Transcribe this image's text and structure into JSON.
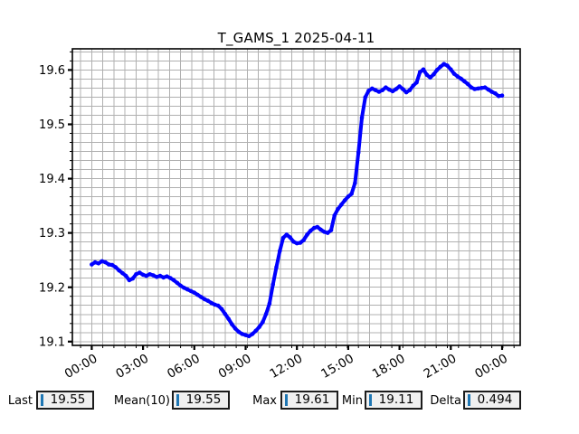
{
  "title": "T_GAMS_1 2025-04-11",
  "stats": [
    {
      "label": "Last",
      "value": "19.55"
    },
    {
      "label": "Mean(10)",
      "value": "19.55"
    },
    {
      "label": "Max",
      "value": "19.61"
    },
    {
      "label": "Min",
      "value": "19.11"
    },
    {
      "label": "Delta",
      "value": "0.494"
    }
  ],
  "colors": {
    "line": "#0000ff",
    "grid": "#b0b0b0",
    "frame": "#000000",
    "tick_label": "#000000",
    "stat_cursor": "#1f77b4",
    "stat_box_bg": "#f0f0f0"
  },
  "chart_data": {
    "type": "line",
    "title": "T_GAMS_1 2025-04-11",
    "xlabel": "",
    "ylabel": "",
    "x_tick_labels": [
      "00:00",
      "03:00",
      "06:00",
      "09:00",
      "12:00",
      "15:00",
      "18:00",
      "21:00",
      "00:00"
    ],
    "x_tick_hours": [
      0,
      3,
      6,
      9,
      12,
      15,
      18,
      21,
      24
    ],
    "y_ticks": [
      19.1,
      19.2,
      19.3,
      19.4,
      19.5,
      19.6
    ],
    "xlim_hours": [
      -1.13,
      25.06
    ],
    "ylim": [
      19.093,
      19.639
    ],
    "grid": "both",
    "x_tick_rotation_deg": 30,
    "legend": "none",
    "sample_start_hour": 0,
    "sample_interval_hours": 0.2,
    "values": [
      19.242,
      19.246,
      19.244,
      19.248,
      19.246,
      19.242,
      19.241,
      19.237,
      19.231,
      19.226,
      19.221,
      19.213,
      19.216,
      19.224,
      19.227,
      19.223,
      19.221,
      19.224,
      19.222,
      19.219,
      19.221,
      19.218,
      19.22,
      19.217,
      19.213,
      19.208,
      19.203,
      19.199,
      19.196,
      19.193,
      19.19,
      19.186,
      19.182,
      19.178,
      19.175,
      19.171,
      19.168,
      19.166,
      19.16,
      19.151,
      19.142,
      19.132,
      19.124,
      19.118,
      19.114,
      19.112,
      19.11,
      19.114,
      19.12,
      19.127,
      19.136,
      19.151,
      19.17,
      19.205,
      19.237,
      19.267,
      19.291,
      19.297,
      19.292,
      19.284,
      19.281,
      19.282,
      19.287,
      19.297,
      19.304,
      19.309,
      19.311,
      19.306,
      19.302,
      19.3,
      19.305,
      19.332,
      19.344,
      19.352,
      19.36,
      19.367,
      19.372,
      19.392,
      19.448,
      19.512,
      19.55,
      19.562,
      19.566,
      19.563,
      19.56,
      19.563,
      19.568,
      19.564,
      19.561,
      19.565,
      19.57,
      19.565,
      19.559,
      19.563,
      19.571,
      19.577,
      19.596,
      19.601,
      19.591,
      19.586,
      19.592,
      19.6,
      19.606,
      19.611,
      19.608,
      19.601,
      19.593,
      19.588,
      19.584,
      19.579,
      19.574,
      19.568,
      19.565,
      19.566,
      19.567,
      19.568,
      19.564,
      19.56,
      19.557,
      19.552,
      19.553
    ]
  }
}
